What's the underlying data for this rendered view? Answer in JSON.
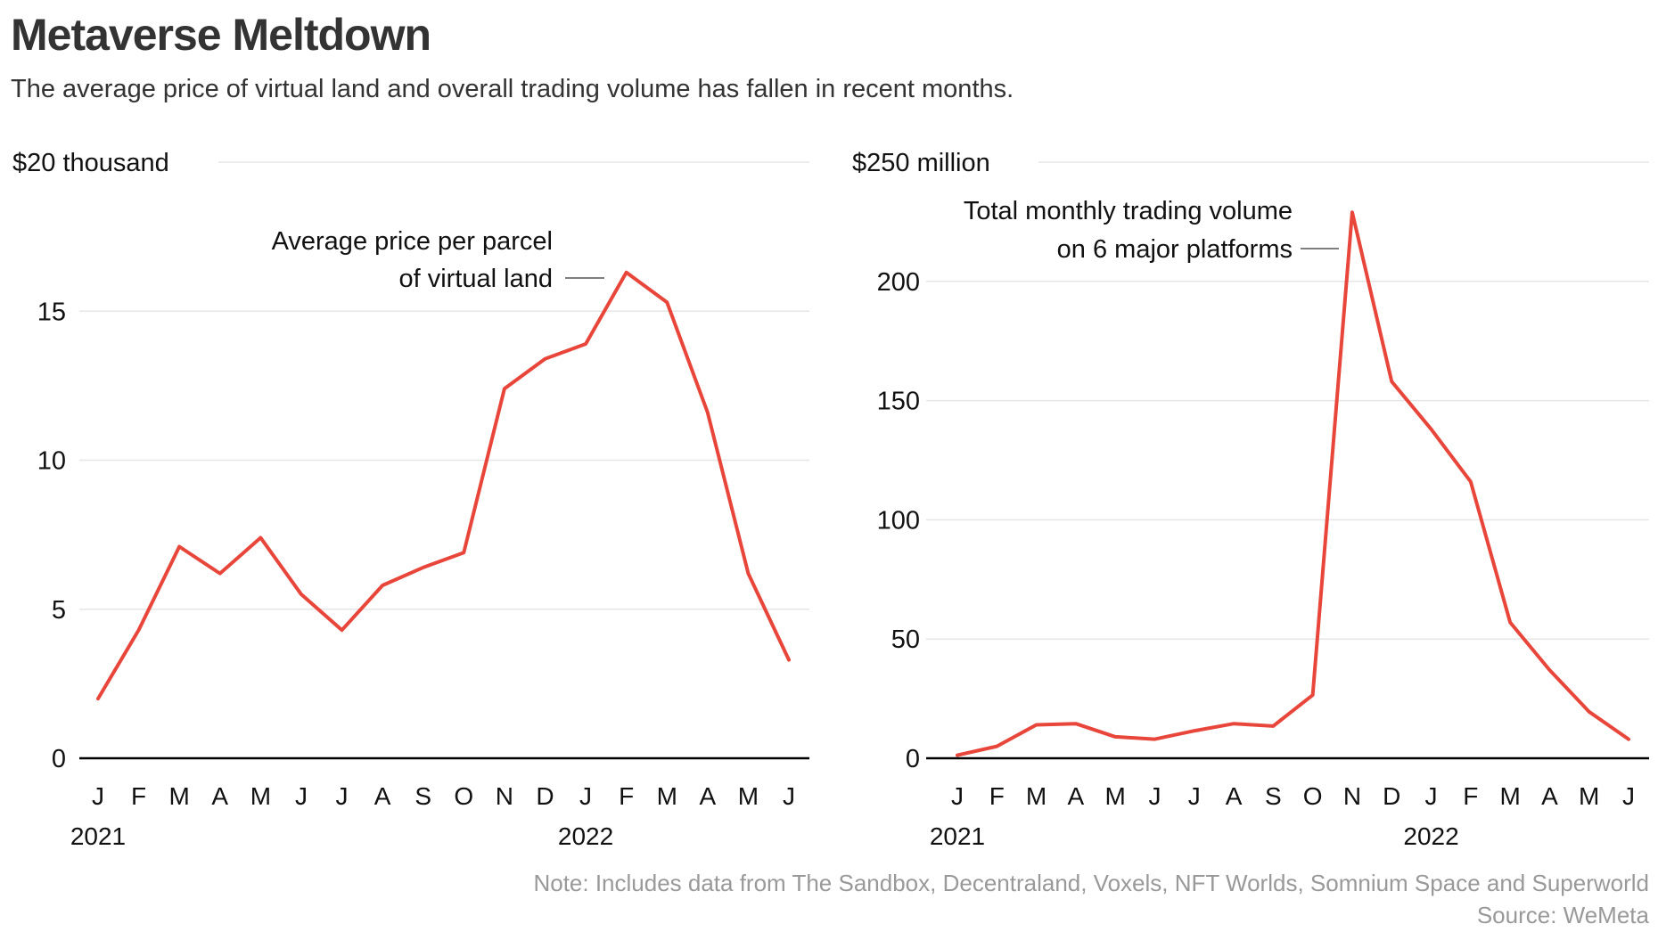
{
  "title": "Metaverse Meltdown",
  "subtitle": "The average price of virtual land and overall trading volume has fallen in recent months.",
  "note": "Note: Includes data from The Sandbox, Decentraland, Voxels, NFT Worlds, Somnium Space and Superworld",
  "source": "Source: WeMeta",
  "colors": {
    "line": "#e8463a",
    "grid": "#e6e6e6",
    "axis": "#000000",
    "text": "#333333",
    "muted": "#999999"
  },
  "chart_data": [
    {
      "type": "line",
      "categories": [
        "J",
        "F",
        "M",
        "A",
        "M",
        "J",
        "J",
        "A",
        "S",
        "O",
        "N",
        "D",
        "J",
        "F",
        "M",
        "A",
        "M",
        "J"
      ],
      "years": [
        {
          "label": "2021",
          "index": 0
        },
        {
          "label": "2022",
          "index": 12
        }
      ],
      "values": [
        2.0,
        4.3,
        7.1,
        6.2,
        7.4,
        5.5,
        4.3,
        5.8,
        6.4,
        6.9,
        12.4,
        13.4,
        13.9,
        16.3,
        15.3,
        11.6,
        6.2,
        3.3
      ],
      "annotation": [
        "Average price per parcel",
        "of virtual land"
      ],
      "ylim": [
        0,
        20
      ],
      "yticks": [
        0,
        5,
        10,
        15,
        20
      ],
      "ytick_labels": [
        "0",
        "5",
        "10",
        "15",
        "$20 thousand"
      ],
      "grid": true
    },
    {
      "type": "line",
      "categories": [
        "J",
        "F",
        "M",
        "A",
        "M",
        "J",
        "J",
        "A",
        "S",
        "O",
        "N",
        "D",
        "J",
        "F",
        "M",
        "A",
        "M",
        "J"
      ],
      "years": [
        {
          "label": "2021",
          "index": 0
        },
        {
          "label": "2022",
          "index": 12
        }
      ],
      "values": [
        1.3,
        5,
        14,
        14.5,
        9,
        8,
        11.5,
        14.5,
        13.5,
        26.5,
        229,
        158,
        138,
        116,
        57,
        37,
        19.5,
        8
      ],
      "annotation": [
        "Total monthly trading volume",
        "on 6 major platforms"
      ],
      "ylim": [
        0,
        250
      ],
      "yticks": [
        0,
        50,
        100,
        150,
        200,
        250
      ],
      "ytick_labels": [
        "0",
        "50",
        "100",
        "150",
        "200",
        "$250 million"
      ],
      "grid": true
    }
  ]
}
